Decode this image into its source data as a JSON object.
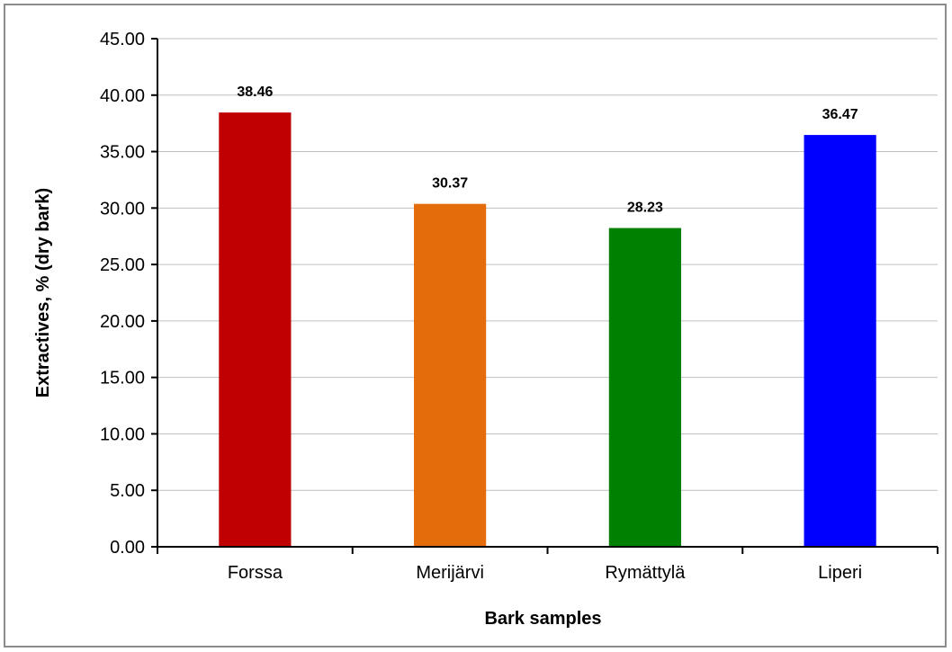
{
  "chart_data": {
    "type": "bar",
    "title": "",
    "xlabel": "Bark samples",
    "ylabel": "Extractives, % (dry bark)",
    "categories": [
      "Forssa",
      "Merijärvi",
      "Rymättylä",
      "Liperi"
    ],
    "values": [
      38.46,
      30.37,
      28.23,
      36.47
    ],
    "data_labels": [
      "38.46",
      "30.37",
      "28.23",
      "36.47"
    ],
    "colors": [
      "#c00000",
      "#e46c0a",
      "#008000",
      "#0000ff"
    ],
    "ylim": [
      0,
      45
    ],
    "yticks": [
      0,
      5,
      10,
      15,
      20,
      25,
      30,
      35,
      40,
      45
    ],
    "ytick_labels": [
      "0.00",
      "5.00",
      "10.00",
      "15.00",
      "20.00",
      "25.00",
      "30.00",
      "35.00",
      "40.00",
      "45.00"
    ],
    "grid": true,
    "legend": "none"
  }
}
